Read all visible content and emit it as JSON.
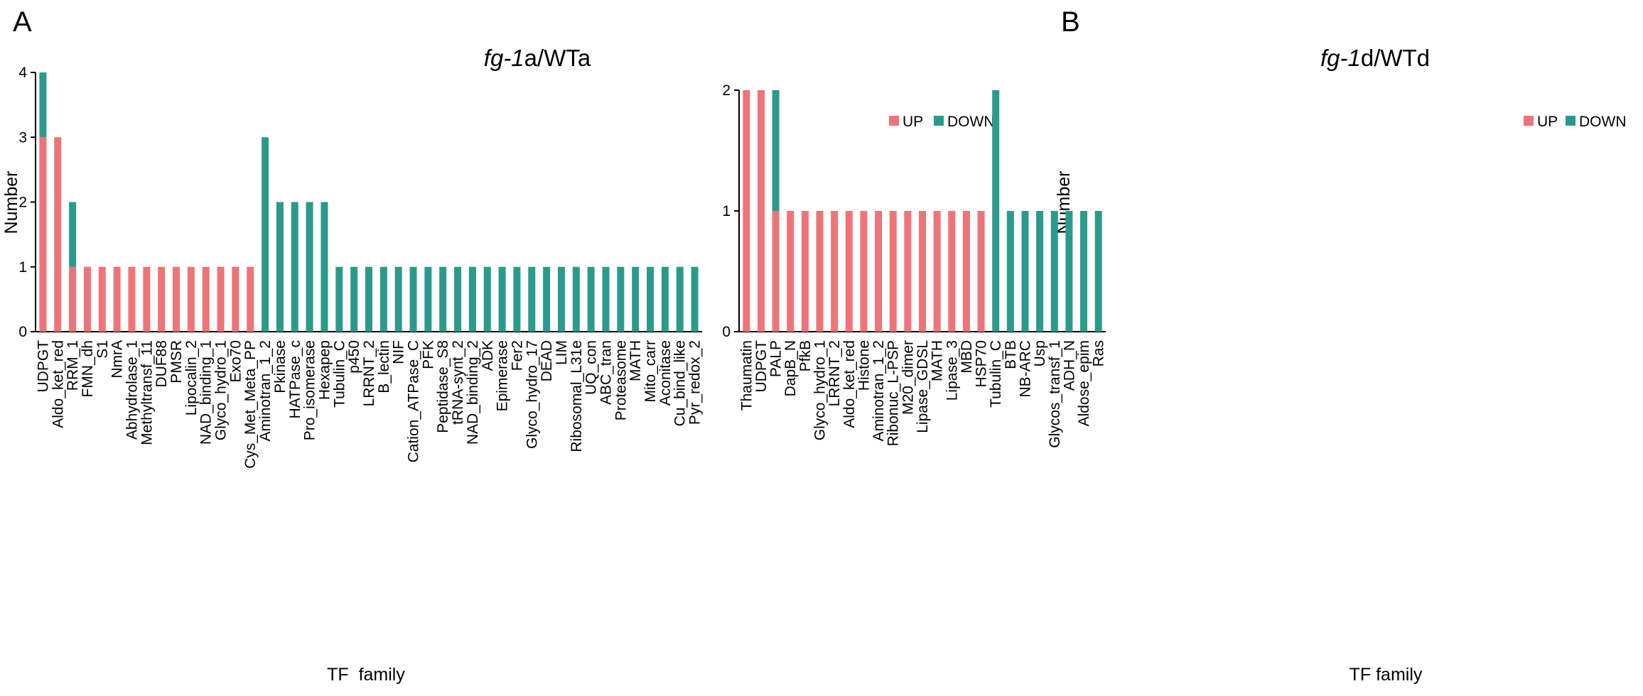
{
  "chart_data": [
    {
      "type": "bar",
      "stacked": true,
      "panel_label": "A",
      "title_italic": "fg-1",
      "title_rest": "a/WTa",
      "xlabel": "TF  family",
      "ylabel": "Number",
      "ylim": [
        0,
        4
      ],
      "yticks": [
        "0",
        "1",
        "2",
        "3",
        "4"
      ],
      "legend": [
        "UP",
        "DOWN"
      ],
      "legend_position": "top-right",
      "categories": [
        "UDPGT",
        "Aldo_ket_red",
        "RRM_1",
        "FMN_dh",
        "S1",
        "NmrA",
        "Abhydrolase_1",
        "Methyltransf_11",
        "DUF88",
        "PMSR",
        "Lipocalin_2",
        "NAD_binding_1",
        "Glyco_hydro_1",
        "Exo70",
        "Cys_Met_Meta_PP",
        "Aminotran_1_2",
        "Pkinase",
        "HATPase_c",
        "Pro_isomerase",
        "Hexapep",
        "Tubulin_C",
        "p450",
        "LRRNT_2",
        "B_lectin",
        "NIF",
        "Cation_ATPase_C",
        "PFK",
        "Peptidase_S8",
        "tRNA-synt_2",
        "NAD_binding_2",
        "ADK",
        "Epimerase",
        "Fer2",
        "Glyco_hydro_17",
        "DEAD",
        "LIM",
        "Ribosomal_L31e",
        "UQ_con",
        "ABC_tran",
        "Proteasome",
        "MATH",
        "Mito_carr",
        "Aconitase",
        "Cu_bind_like",
        "Pyr_redox_2"
      ],
      "series": [
        {
          "name": "UP",
          "values": [
            3,
            3,
            1,
            1,
            1,
            1,
            1,
            1,
            1,
            1,
            1,
            1,
            1,
            1,
            1,
            0,
            0,
            0,
            0,
            0,
            0,
            0,
            0,
            0,
            0,
            0,
            0,
            0,
            0,
            0,
            0,
            0,
            0,
            0,
            0,
            0,
            0,
            0,
            0,
            0,
            0,
            0,
            0,
            0,
            0
          ]
        },
        {
          "name": "DOWN",
          "values": [
            1,
            0,
            1,
            0,
            0,
            0,
            0,
            0,
            0,
            0,
            0,
            0,
            0,
            0,
            0,
            3,
            2,
            2,
            2,
            2,
            1,
            1,
            1,
            1,
            1,
            1,
            1,
            1,
            1,
            1,
            1,
            1,
            1,
            1,
            1,
            1,
            1,
            1,
            1,
            1,
            1,
            1,
            1,
            1,
            1
          ]
        }
      ]
    },
    {
      "type": "bar",
      "stacked": true,
      "panel_label": "B",
      "title_italic": "fg-1",
      "title_rest": "d/WTd",
      "xlabel": "TF family",
      "ylabel": "Number",
      "ylim": [
        0,
        2
      ],
      "yticks": [
        "0",
        "1",
        "2"
      ],
      "legend": [
        "UP",
        "DOWN"
      ],
      "legend_position": "top-right",
      "categories": [
        "Thaumatin",
        "UDPGT",
        "PALP",
        "DapB_N",
        "PfkB",
        "Glyco_hydro_1",
        "LRRNT_2",
        "Aldo_ket_red",
        "Histone",
        "Aminotran_1_2",
        "Ribonuc_L-PSP",
        "M20_dimer",
        "Lipase_GDSL",
        "MATH",
        "Lipase_3",
        "MBD",
        "HSP70",
        "Tubulin_C",
        "BTB",
        "NB-ARC",
        "Usp",
        "Glycos_transf_1",
        "ADH_N",
        "Aldose_epim",
        "Ras"
      ],
      "series": [
        {
          "name": "UP",
          "values": [
            2,
            2,
            1,
            1,
            1,
            1,
            1,
            1,
            1,
            1,
            1,
            1,
            1,
            1,
            1,
            1,
            1,
            0,
            0,
            0,
            0,
            0,
            0,
            0,
            0
          ]
        },
        {
          "name": "DOWN",
          "values": [
            0,
            0,
            1,
            0,
            0,
            0,
            0,
            0,
            0,
            0,
            0,
            0,
            0,
            0,
            0,
            0,
            0,
            2,
            1,
            1,
            1,
            1,
            1,
            1,
            1
          ]
        }
      ]
    }
  ],
  "colors": {
    "up": "#ED7478",
    "down": "#2B9A8C"
  }
}
